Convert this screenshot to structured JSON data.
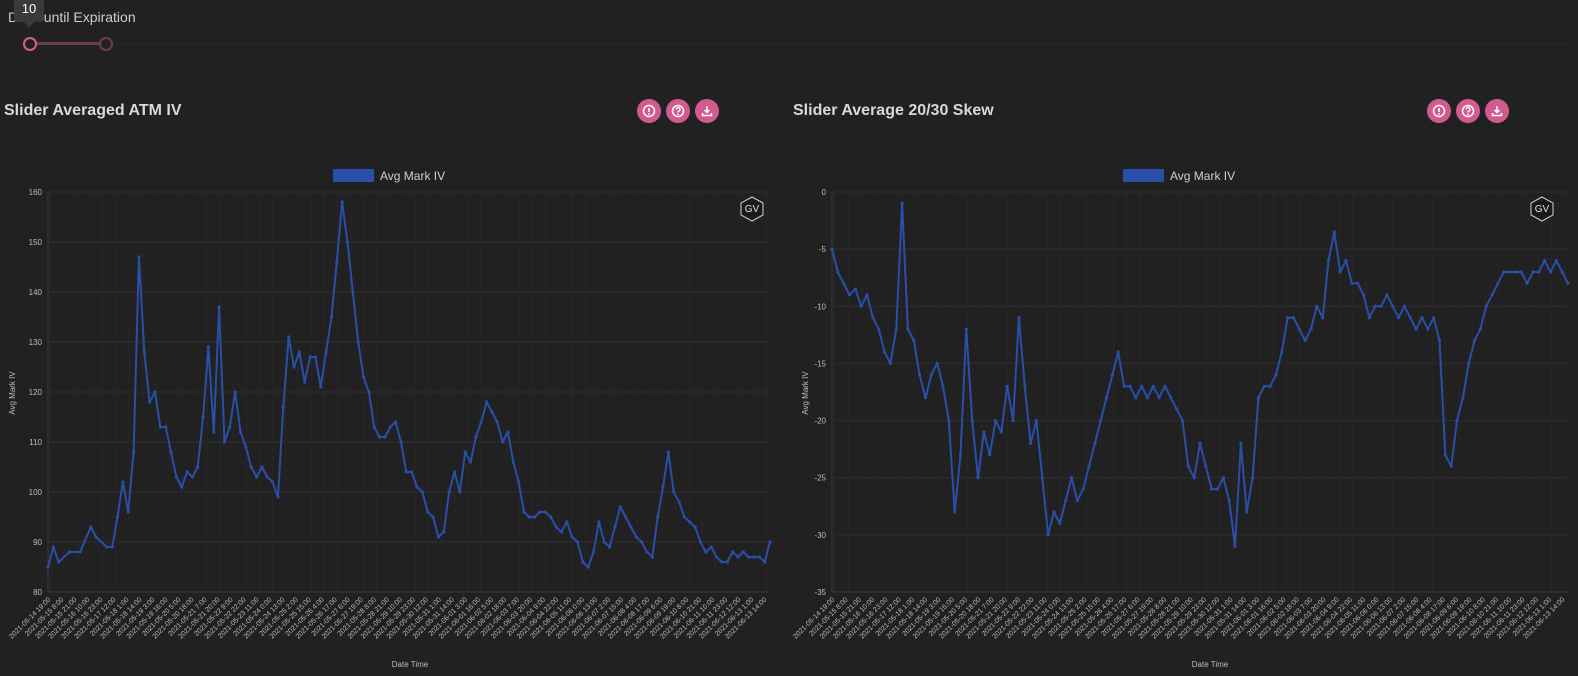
{
  "slider": {
    "label": "Days until Expiration",
    "tooltip_value": "10",
    "min_value": 10,
    "max_value": 30
  },
  "panels": [
    {
      "title": "Slider Averaged ATM IV",
      "legend": "Avg Mark IV",
      "watermark": "GV"
    },
    {
      "title": "Slider Average 20/30 Skew",
      "legend": "Avg Mark IV",
      "watermark": "GV"
    }
  ],
  "buttons": [
    "info-icon",
    "help-icon",
    "download-icon"
  ],
  "colors": {
    "accent": "#d15b8f",
    "series": "#2a4fa8",
    "background": "#212121"
  },
  "chart_data": [
    {
      "type": "line",
      "legend": "Avg Mark IV",
      "xlabel": "Date Time",
      "ylabel": "Avg Mark IV",
      "ylim": [
        80,
        160
      ],
      "yticks": [
        80,
        90,
        100,
        110,
        120,
        130,
        140,
        150,
        160
      ],
      "x_tick_labels": [
        "2021-05-14 19:00",
        "2021-05-15 8:00",
        "2021-05-15 21:00",
        "2021-05-16 10:00",
        "2021-05-16 23:00",
        "2021-05-17 12:00",
        "2021-05-18 1:00",
        "2021-05-18 14:00",
        "2021-05-19 3:00",
        "2021-05-19 16:00",
        "2021-05-20 5:00",
        "2021-05-20 18:00",
        "2021-05-21 7:00",
        "2021-05-21 20:00",
        "2021-05-22 9:00",
        "2021-05-22 22:00",
        "2021-05-23 11:00",
        "2021-05-24 0:00",
        "2021-05-24 13:00",
        "2021-05-25 2:00",
        "2021-05-25 15:00",
        "2021-05-26 4:00",
        "2021-05-26 17:00",
        "2021-05-27 6:00",
        "2021-05-27 19:00",
        "2021-05-28 8:00",
        "2021-05-28 21:00",
        "2021-05-29 10:00",
        "2021-05-29 23:00",
        "2021-05-30 12:00",
        "2021-05-31 1:00",
        "2021-05-31 14:00",
        "2021-06-01 3:00",
        "2021-06-01 16:00",
        "2021-06-02 5:00",
        "2021-06-02 18:00",
        "2021-06-03 7:00",
        "2021-06-03 20:00",
        "2021-06-04 9:00",
        "2021-06-04 22:00",
        "2021-06-05 11:00",
        "2021-06-06 0:00",
        "2021-06-06 13:00",
        "2021-06-07 2:00",
        "2021-06-07 15:00",
        "2021-06-08 4:00",
        "2021-06-08 17:00",
        "2021-06-09 6:00",
        "2021-06-09 19:00",
        "2021-06-10 8:00",
        "2021-06-10 21:00",
        "2021-06-11 10:00",
        "2021-06-11 23:00",
        "2021-06-12 12:00",
        "2021-06-13 1:00",
        "2021-06-13 14:00"
      ],
      "keypoints": [
        [
          0,
          85
        ],
        [
          1,
          89
        ],
        [
          2,
          86
        ],
        [
          4,
          88
        ],
        [
          6,
          88
        ],
        [
          8,
          93
        ],
        [
          9,
          91
        ],
        [
          11,
          89
        ],
        [
          12,
          89
        ],
        [
          13,
          95
        ],
        [
          14,
          102
        ],
        [
          15,
          96
        ],
        [
          16,
          108
        ],
        [
          17,
          147
        ],
        [
          18,
          128
        ],
        [
          19,
          118
        ],
        [
          20,
          120
        ],
        [
          21,
          113
        ],
        [
          22,
          113
        ],
        [
          23,
          108
        ],
        [
          24,
          103
        ],
        [
          25,
          101
        ],
        [
          26,
          104
        ],
        [
          27,
          103
        ],
        [
          28,
          105
        ],
        [
          29,
          115
        ],
        [
          30,
          129
        ],
        [
          31,
          112
        ],
        [
          32,
          137
        ],
        [
          33,
          110
        ],
        [
          34,
          113
        ],
        [
          35,
          120
        ],
        [
          36,
          112
        ],
        [
          37,
          109
        ],
        [
          38,
          105
        ],
        [
          39,
          103
        ],
        [
          40,
          105
        ],
        [
          41,
          103
        ],
        [
          42,
          102
        ],
        [
          43,
          99
        ],
        [
          44,
          117
        ],
        [
          45,
          131
        ],
        [
          46,
          125
        ],
        [
          47,
          128
        ],
        [
          48,
          122
        ],
        [
          49,
          127
        ],
        [
          50,
          127
        ],
        [
          51,
          121
        ],
        [
          52,
          128
        ],
        [
          53,
          135
        ],
        [
          54,
          146
        ],
        [
          55,
          158
        ],
        [
          56,
          150
        ],
        [
          57,
          140
        ],
        [
          58,
          130
        ],
        [
          59,
          123
        ],
        [
          60,
          120
        ],
        [
          61,
          113
        ],
        [
          62,
          111
        ],
        [
          63,
          111
        ],
        [
          64,
          113
        ],
        [
          65,
          114
        ],
        [
          66,
          110
        ],
        [
          67,
          104
        ],
        [
          68,
          104
        ],
        [
          69,
          101
        ],
        [
          70,
          100
        ],
        [
          71,
          96
        ],
        [
          72,
          95
        ],
        [
          73,
          91
        ],
        [
          74,
          92
        ],
        [
          75,
          100
        ],
        [
          76,
          104
        ],
        [
          77,
          100
        ],
        [
          78,
          108
        ],
        [
          79,
          106
        ],
        [
          80,
          111
        ],
        [
          81,
          114
        ],
        [
          82,
          118
        ],
        [
          83,
          116
        ],
        [
          84,
          114
        ],
        [
          85,
          110
        ],
        [
          86,
          112
        ],
        [
          87,
          106
        ],
        [
          88,
          102
        ],
        [
          89,
          96
        ],
        [
          90,
          95
        ],
        [
          91,
          95
        ],
        [
          92,
          96
        ],
        [
          93,
          96
        ],
        [
          94,
          95
        ],
        [
          95,
          93
        ],
        [
          96,
          92
        ],
        [
          97,
          94
        ],
        [
          98,
          91
        ],
        [
          99,
          90
        ],
        [
          100,
          86
        ],
        [
          101,
          85
        ],
        [
          102,
          88
        ],
        [
          103,
          94
        ],
        [
          104,
          90
        ],
        [
          105,
          89
        ],
        [
          106,
          93
        ],
        [
          107,
          97
        ],
        [
          108,
          95
        ],
        [
          109,
          93
        ],
        [
          110,
          91
        ],
        [
          111,
          90
        ],
        [
          112,
          88
        ],
        [
          113,
          87
        ],
        [
          114,
          95
        ],
        [
          115,
          101
        ],
        [
          116,
          108
        ],
        [
          117,
          100
        ],
        [
          118,
          98
        ],
        [
          119,
          95
        ],
        [
          120,
          94
        ],
        [
          121,
          93
        ],
        [
          122,
          90
        ],
        [
          123,
          88
        ],
        [
          124,
          89
        ],
        [
          125,
          87
        ],
        [
          126,
          86
        ],
        [
          127,
          86
        ],
        [
          128,
          88
        ],
        [
          129,
          87
        ],
        [
          130,
          88
        ],
        [
          131,
          87
        ],
        [
          132,
          87
        ],
        [
          133,
          87
        ],
        [
          134,
          86
        ],
        [
          135,
          90
        ]
      ]
    },
    {
      "type": "line",
      "legend": "Avg Mark IV",
      "xlabel": "Date Time",
      "ylabel": "Avg Mark IV",
      "ylim": [
        -35,
        0
      ],
      "yticks": [
        -35,
        -30,
        -25,
        -20,
        -15,
        -10,
        -5,
        0
      ],
      "x_tick_labels": [
        "2021-05-14 19:00",
        "2021-05-15 8:00",
        "2021-05-15 21:00",
        "2021-05-16 10:00",
        "2021-05-16 23:00",
        "2021-05-17 12:00",
        "2021-05-18 1:00",
        "2021-05-18 14:00",
        "2021-05-19 3:00",
        "2021-05-19 16:00",
        "2021-05-20 5:00",
        "2021-05-20 18:00",
        "2021-05-21 7:00",
        "2021-05-21 20:00",
        "2021-05-22 9:00",
        "2021-05-22 22:00",
        "2021-05-23 11:00",
        "2021-05-24 0:00",
        "2021-05-24 13:00",
        "2021-05-25 2:00",
        "2021-05-25 15:00",
        "2021-05-26 4:00",
        "2021-05-26 17:00",
        "2021-05-27 6:00",
        "2021-05-27 19:00",
        "2021-05-28 8:00",
        "2021-05-28 21:00",
        "2021-05-29 10:00",
        "2021-05-29 23:00",
        "2021-05-30 12:00",
        "2021-05-31 1:00",
        "2021-05-31 14:00",
        "2021-06-01 3:00",
        "2021-06-01 16:00",
        "2021-06-02 5:00",
        "2021-06-02 18:00",
        "2021-06-03 7:00",
        "2021-06-03 20:00",
        "2021-06-04 9:00",
        "2021-06-04 22:00",
        "2021-06-05 11:00",
        "2021-06-06 0:00",
        "2021-06-06 13:00",
        "2021-06-07 2:00",
        "2021-06-07 15:00",
        "2021-06-08 4:00",
        "2021-06-08 17:00",
        "2021-06-09 6:00",
        "2021-06-09 19:00",
        "2021-06-10 8:00",
        "2021-06-10 21:00",
        "2021-06-11 10:00",
        "2021-06-11 23:00",
        "2021-06-12 12:00",
        "2021-06-13 1:00",
        "2021-06-13 14:00"
      ],
      "keypoints": [
        [
          0,
          -5
        ],
        [
          1,
          -7
        ],
        [
          2,
          -8
        ],
        [
          3,
          -9
        ],
        [
          4,
          -8.5
        ],
        [
          5,
          -10
        ],
        [
          6,
          -9
        ],
        [
          7,
          -11
        ],
        [
          8,
          -12
        ],
        [
          9,
          -14
        ],
        [
          10,
          -15
        ],
        [
          11,
          -12
        ],
        [
          12,
          -1
        ],
        [
          13,
          -12
        ],
        [
          14,
          -13
        ],
        [
          15,
          -16
        ],
        [
          16,
          -18
        ],
        [
          17,
          -16
        ],
        [
          18,
          -15
        ],
        [
          19,
          -17
        ],
        [
          20,
          -20
        ],
        [
          21,
          -28
        ],
        [
          22,
          -23
        ],
        [
          23,
          -12
        ],
        [
          24,
          -20
        ],
        [
          25,
          -25
        ],
        [
          26,
          -21
        ],
        [
          27,
          -23
        ],
        [
          28,
          -20
        ],
        [
          29,
          -21
        ],
        [
          30,
          -17
        ],
        [
          31,
          -20
        ],
        [
          32,
          -11
        ],
        [
          33,
          -17
        ],
        [
          34,
          -22
        ],
        [
          35,
          -20
        ],
        [
          36,
          -25
        ],
        [
          37,
          -30
        ],
        [
          38,
          -28
        ],
        [
          39,
          -29
        ],
        [
          40,
          -27
        ],
        [
          41,
          -25
        ],
        [
          42,
          -27
        ],
        [
          43,
          -26
        ],
        [
          44,
          -24
        ],
        [
          45,
          -22
        ],
        [
          46,
          -20
        ],
        [
          47,
          -18
        ],
        [
          48,
          -16
        ],
        [
          49,
          -14
        ],
        [
          50,
          -17
        ],
        [
          51,
          -17
        ],
        [
          52,
          -18
        ],
        [
          53,
          -17
        ],
        [
          54,
          -18
        ],
        [
          55,
          -17
        ],
        [
          56,
          -18
        ],
        [
          57,
          -17
        ],
        [
          58,
          -18
        ],
        [
          59,
          -19
        ],
        [
          60,
          -20
        ],
        [
          61,
          -24
        ],
        [
          62,
          -25
        ],
        [
          63,
          -22
        ],
        [
          64,
          -24
        ],
        [
          65,
          -26
        ],
        [
          66,
          -26
        ],
        [
          67,
          -25
        ],
        [
          68,
          -27
        ],
        [
          69,
          -31
        ],
        [
          70,
          -22
        ],
        [
          71,
          -28
        ],
        [
          72,
          -25
        ],
        [
          73,
          -18
        ],
        [
          74,
          -17
        ],
        [
          75,
          -17
        ],
        [
          76,
          -16
        ],
        [
          77,
          -14
        ],
        [
          78,
          -11
        ],
        [
          79,
          -11
        ],
        [
          80,
          -12
        ],
        [
          81,
          -13
        ],
        [
          82,
          -12
        ],
        [
          83,
          -10
        ],
        [
          84,
          -11
        ],
        [
          85,
          -6
        ],
        [
          86,
          -3.5
        ],
        [
          87,
          -7
        ],
        [
          88,
          -6
        ],
        [
          89,
          -8
        ],
        [
          90,
          -8
        ],
        [
          91,
          -9
        ],
        [
          92,
          -11
        ],
        [
          93,
          -10
        ],
        [
          94,
          -10
        ],
        [
          95,
          -9
        ],
        [
          96,
          -10
        ],
        [
          97,
          -11
        ],
        [
          98,
          -10
        ],
        [
          99,
          -11
        ],
        [
          100,
          -12
        ],
        [
          101,
          -11
        ],
        [
          102,
          -12
        ],
        [
          103,
          -11
        ],
        [
          104,
          -13
        ],
        [
          105,
          -23
        ],
        [
          106,
          -24
        ],
        [
          107,
          -20
        ],
        [
          108,
          -18
        ],
        [
          109,
          -15
        ],
        [
          110,
          -13
        ],
        [
          111,
          -12
        ],
        [
          112,
          -10
        ],
        [
          113,
          -9
        ],
        [
          114,
          -8
        ],
        [
          115,
          -7
        ],
        [
          116,
          -7
        ],
        [
          117,
          -7
        ],
        [
          118,
          -7
        ],
        [
          119,
          -8
        ],
        [
          120,
          -7
        ],
        [
          121,
          -7
        ],
        [
          122,
          -6
        ],
        [
          123,
          -7
        ],
        [
          124,
          -6
        ],
        [
          125,
          -7
        ],
        [
          126,
          -8
        ]
      ]
    }
  ]
}
